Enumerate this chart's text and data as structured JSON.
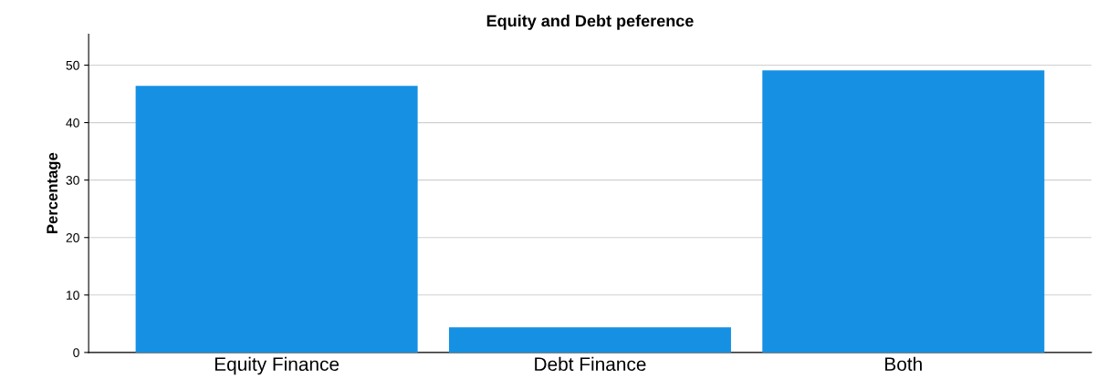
{
  "chart_data": {
    "type": "bar",
    "title": "Equity and Debt peference",
    "ylabel": "Percentage",
    "categories": [
      "Equity Finance",
      "Debt Finance",
      "Both"
    ],
    "values": [
      46.4,
      4.4,
      49.1
    ],
    "color": "#1690e3",
    "ylim": [
      0,
      55.4
    ],
    "yticks": [
      0,
      10,
      20,
      30,
      40,
      50
    ],
    "grid": "y"
  }
}
